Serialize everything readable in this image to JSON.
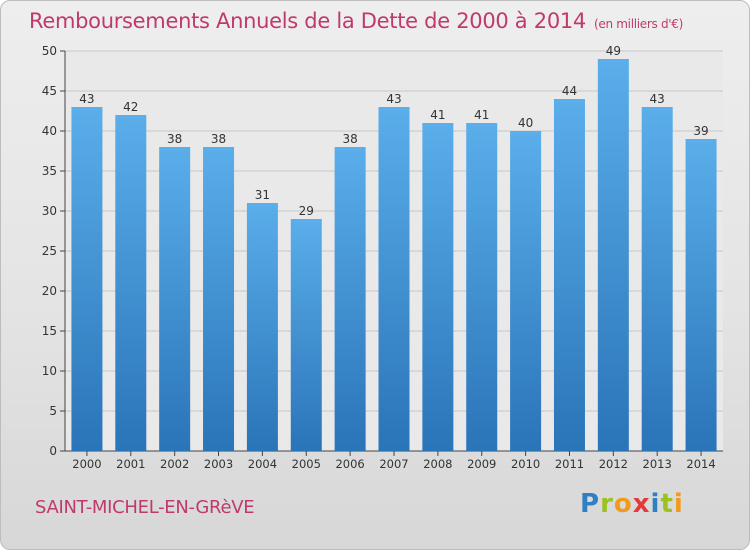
{
  "chart_data": {
    "type": "bar",
    "title": "Remboursements Annuels de la Dette de 2000 à 2014",
    "subtitle": "(en milliers d'€)",
    "categories": [
      "2000",
      "2001",
      "2002",
      "2003",
      "2004",
      "2005",
      "2006",
      "2007",
      "2008",
      "2009",
      "2010",
      "2011",
      "2012",
      "2013",
      "2014"
    ],
    "values": [
      43,
      42,
      38,
      38,
      31,
      29,
      38,
      43,
      41,
      41,
      40,
      44,
      49,
      43,
      39
    ],
    "ylim": [
      0,
      50
    ],
    "yticks": [
      0,
      5,
      10,
      15,
      20,
      25,
      30,
      35,
      40,
      45,
      50
    ],
    "grid": true,
    "bar_color": "#3d8fd6",
    "xlabel": "",
    "ylabel": ""
  },
  "location": "SAINT-MICHEL-EN-GRèVE",
  "brand": "Proxiti",
  "colors": {
    "title": "#c0396d",
    "bar_top": "#5aaeea",
    "bar_bottom": "#2a74b8",
    "grid": "#c8c8c8",
    "axis": "#444444"
  }
}
